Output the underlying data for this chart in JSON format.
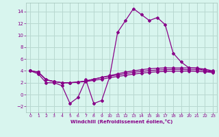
{
  "x": [
    0,
    1,
    2,
    3,
    4,
    5,
    6,
    7,
    8,
    9,
    10,
    11,
    12,
    13,
    14,
    15,
    16,
    17,
    18,
    19,
    20,
    21,
    22,
    23
  ],
  "line1": [
    4.0,
    3.5,
    2.0,
    2.0,
    1.5,
    -1.5,
    -0.5,
    2.5,
    -1.5,
    -1.0,
    3.0,
    10.5,
    12.5,
    14.5,
    13.5,
    12.5,
    13.0,
    11.8,
    7.0,
    5.5,
    4.5,
    4.5,
    4.0,
    3.8
  ],
  "line2": [
    4.0,
    3.8,
    2.5,
    2.2,
    2.0,
    2.0,
    2.1,
    2.3,
    2.6,
    2.9,
    3.2,
    3.5,
    3.8,
    4.0,
    4.2,
    4.35,
    4.45,
    4.5,
    4.5,
    4.5,
    4.5,
    4.45,
    4.3,
    4.0
  ],
  "line3": [
    4.0,
    3.8,
    2.5,
    2.2,
    2.0,
    2.0,
    2.1,
    2.3,
    2.6,
    2.9,
    3.1,
    3.3,
    3.55,
    3.75,
    3.9,
    4.05,
    4.15,
    4.2,
    4.25,
    4.25,
    4.2,
    4.2,
    4.1,
    3.9
  ],
  "line4": [
    4.0,
    3.8,
    2.5,
    2.2,
    2.0,
    2.0,
    2.1,
    2.2,
    2.4,
    2.6,
    2.85,
    3.05,
    3.25,
    3.45,
    3.6,
    3.75,
    3.85,
    3.9,
    3.95,
    3.95,
    3.95,
    3.9,
    3.85,
    3.7
  ],
  "line_color": "#880088",
  "bg_color": "#d8f5ee",
  "grid_color": "#b8d8d0",
  "xlabel": "Windchill (Refroidissement éolien,°C)",
  "ylim": [
    -3,
    15.5
  ],
  "xlim": [
    -0.5,
    23.5
  ],
  "yticks": [
    -2,
    0,
    2,
    4,
    6,
    8,
    10,
    12,
    14
  ],
  "xticks": [
    0,
    1,
    2,
    3,
    4,
    5,
    6,
    7,
    8,
    9,
    10,
    11,
    12,
    13,
    14,
    15,
    16,
    17,
    18,
    19,
    20,
    21,
    22,
    23
  ]
}
